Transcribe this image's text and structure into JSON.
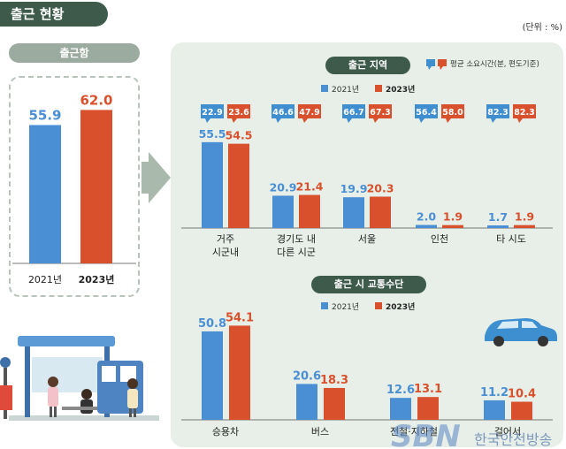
{
  "header": {
    "title": "출근 현황",
    "unit": "(단위 : %)"
  },
  "colors": {
    "y2021": "#4a8fd4",
    "y2023": "#d9512c",
    "time2021": "#3f8fd0",
    "time2023": "#d9512c",
    "dark_green": "#3d5a4b",
    "panel": "#e7efe8"
  },
  "legend": {
    "y2021": "2021년",
    "y2023": "2023년",
    "time": "평균 소요시간(분, 편도기준)"
  },
  "chart_data": [
    {
      "type": "bar",
      "title": "출근함",
      "categories": [
        "2021년",
        "2023년"
      ],
      "values": [
        55.9,
        62.0
      ],
      "labels": [
        "55.9",
        "62.0"
      ],
      "ylim": [
        0,
        70
      ]
    },
    {
      "type": "bar",
      "title": "출근 지역",
      "categories": [
        "거주 시군내",
        "경기도 내 다른 시군",
        "서울",
        "인천",
        "타 시도"
      ],
      "category_lines": [
        [
          "거주",
          "시군내"
        ],
        [
          "경기도 내",
          "다른 시군"
        ],
        [
          "서울"
        ],
        [
          "인천"
        ],
        [
          "타 시도"
        ]
      ],
      "series": [
        {
          "name": "2021년",
          "values": [
            55.5,
            20.9,
            19.9,
            2.0,
            1.7
          ],
          "labels": [
            "55.5",
            "20.9",
            "19.9",
            "2.0",
            "1.7"
          ]
        },
        {
          "name": "2023년",
          "values": [
            54.5,
            21.4,
            20.3,
            1.9,
            1.9
          ],
          "labels": [
            "54.5",
            "21.4",
            "20.3",
            "1.9",
            "1.9"
          ]
        }
      ],
      "avg_commute_minutes": {
        "name": "평균 소요시간(분, 편도기준)",
        "y2021": [
          "22.9",
          "46.6",
          "66.7",
          "56.4",
          "82.3"
        ],
        "y2023": [
          "23.6",
          "47.9",
          "67.3",
          "58.0",
          "82.3"
        ]
      },
      "ylim": [
        0,
        60
      ]
    },
    {
      "type": "bar",
      "title": "출근 시 교통수단",
      "categories": [
        "승용차",
        "버스",
        "전철·지하철",
        "걸어서"
      ],
      "series": [
        {
          "name": "2021년",
          "values": [
            50.8,
            20.6,
            12.6,
            11.2
          ],
          "labels": [
            "50.8",
            "20.6",
            "12.6",
            "11.2"
          ]
        },
        {
          "name": "2023년",
          "values": [
            54.1,
            18.3,
            13.1,
            10.4
          ],
          "labels": [
            "54.1",
            "18.3",
            "13.1",
            "10.4"
          ]
        }
      ],
      "ylim": [
        0,
        60
      ]
    }
  ],
  "watermark": {
    "logo": "SBN",
    "text": "한국안전방송"
  }
}
